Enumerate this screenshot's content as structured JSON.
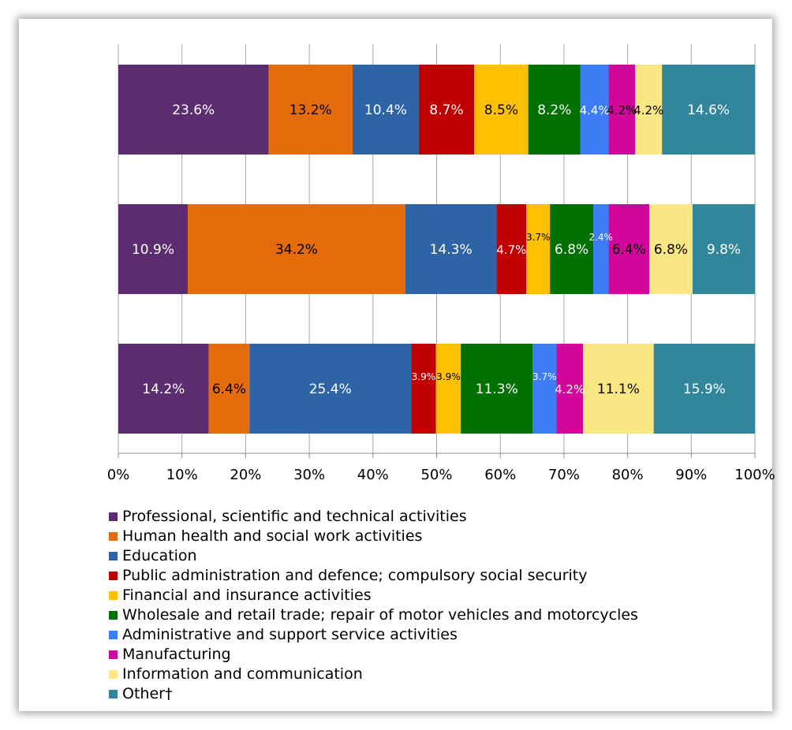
{
  "chart_data": {
    "type": "bar",
    "orientation": "horizontal",
    "stacked": "percent",
    "title": "",
    "xlabel": "",
    "ylabel": "",
    "xlim": [
      0,
      100
    ],
    "x_ticks": [
      "0%",
      "10%",
      "20%",
      "30%",
      "40%",
      "50%",
      "60%",
      "70%",
      "80%",
      "90%",
      "100%"
    ],
    "grid": "vertical",
    "legend_position": "bottom",
    "bars": 3,
    "series": [
      {
        "name": "Professional, scientific and technical activities",
        "color": "#5B2C6F",
        "values": [
          23.6,
          10.9,
          14.2
        ],
        "labels": [
          "23.6%",
          "10.9%",
          "14.2%"
        ],
        "label_colors": [
          "#ffffff",
          "#ffffff",
          "#ffffff"
        ]
      },
      {
        "name": "Human health and social work activities",
        "color": "#E46C0A",
        "values": [
          13.2,
          34.2,
          6.4
        ],
        "labels": [
          "13.2%",
          "34.2%",
          "6.4%"
        ],
        "label_colors": [
          "#000000",
          "#000000",
          "#000000"
        ]
      },
      {
        "name": "Education",
        "color": "#2E64A6",
        "values": [
          10.4,
          14.3,
          25.4
        ],
        "labels": [
          "10.4%",
          "14.3%",
          "25.4%"
        ],
        "label_colors": [
          "#ffffff",
          "#ffffff",
          "#ffffff"
        ]
      },
      {
        "name": "Public administration and defence; compulsory social security",
        "color": "#C00000",
        "values": [
          8.7,
          4.7,
          3.9
        ],
        "labels": [
          "8.7%",
          "4.7%",
          "3.9%"
        ],
        "label_colors": [
          "#ffffff",
          "#ffffff",
          "#ffffff"
        ]
      },
      {
        "name": "Financial and insurance activities",
        "color": "#FFC000",
        "values": [
          8.5,
          3.7,
          3.9
        ],
        "labels": [
          "8.5%",
          "3.7%",
          "3.9%"
        ],
        "label_colors": [
          "#000000",
          "#000000",
          "#000000"
        ]
      },
      {
        "name": "Wholesale and retail trade; repair of motor vehicles and motorcycles",
        "color": "#007000",
        "values": [
          8.2,
          6.8,
          11.3
        ],
        "labels": [
          "8.2%",
          "6.8%",
          "11.3%"
        ],
        "label_colors": [
          "#ffffff",
          "#ffffff",
          "#ffffff"
        ]
      },
      {
        "name": "Administrative and support service activities",
        "color": "#3C7DF5",
        "values": [
          4.4,
          2.4,
          3.7
        ],
        "labels": [
          "4.4%",
          "2.4%",
          "3.7%"
        ],
        "label_colors": [
          "#ffffff",
          "#ffffff",
          "#ffffff"
        ]
      },
      {
        "name": "Manufacturing",
        "color": "#D1069A",
        "values": [
          4.2,
          6.4,
          4.2
        ],
        "labels": [
          "4.2%",
          "6.4%",
          "4.2%"
        ],
        "label_colors": [
          "#000000",
          "#000000",
          "#ffffff"
        ]
      },
      {
        "name": "Information and communication",
        "color": "#FBE784",
        "values": [
          4.2,
          6.8,
          11.1
        ],
        "labels": [
          "4.2%",
          "6.8%",
          "11.1%"
        ],
        "label_colors": [
          "#000000",
          "#000000",
          "#000000"
        ]
      },
      {
        "name": "Other†",
        "color": "#31869B",
        "values": [
          14.6,
          9.8,
          15.9
        ],
        "labels": [
          "14.6%",
          "9.8%",
          "15.9%"
        ],
        "label_colors": [
          "#ffffff",
          "#ffffff",
          "#ffffff"
        ]
      }
    ]
  }
}
